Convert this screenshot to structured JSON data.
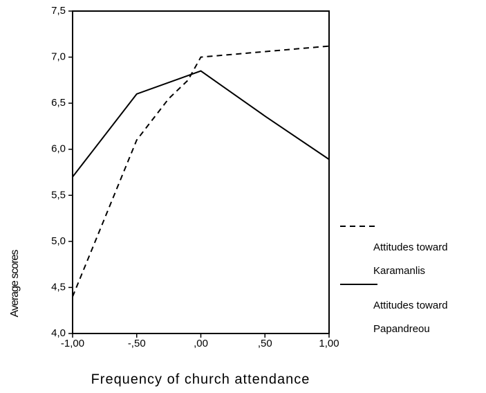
{
  "chart_data": {
    "type": "line",
    "x_label": "Frequency of church attendance",
    "y_label": "Average scores",
    "xlim": [
      -1,
      1
    ],
    "xticks": [
      {
        "value": -1,
        "label": "-1,00"
      },
      {
        "value": -0.5,
        "label": "-,50"
      },
      {
        "value": 0,
        "label": ",00"
      },
      {
        "value": 0.5,
        "label": ",50"
      },
      {
        "value": 1,
        "label": "1,00"
      }
    ],
    "ylim": [
      4,
      7.5
    ],
    "yticks": [
      {
        "value": 4,
        "label": "4,0"
      },
      {
        "value": 4.5,
        "label": "4,5"
      },
      {
        "value": 5,
        "label": "5,0"
      },
      {
        "value": 5.5,
        "label": "5,5"
      },
      {
        "value": 6,
        "label": "6,0"
      },
      {
        "value": 6.5,
        "label": "6,5"
      },
      {
        "value": 7,
        "label": "7,0"
      },
      {
        "value": 7.5,
        "label": "7,5"
      }
    ],
    "series": [
      {
        "name": "Attitudes toward Karamanlis",
        "color": "#000000",
        "dash": true,
        "x": [
          -1,
          -0.5,
          -0.25,
          -0.1,
          0,
          1
        ],
        "values": [
          4.4,
          6.1,
          6.55,
          6.75,
          7.0,
          7.12
        ]
      },
      {
        "name": "Attitudes toward Papandreou",
        "color": "#000000",
        "dash": false,
        "x": [
          -1,
          -0.5,
          0,
          0.5,
          1
        ],
        "values": [
          5.7,
          6.6,
          6.85,
          6.36,
          5.89
        ]
      }
    ]
  }
}
